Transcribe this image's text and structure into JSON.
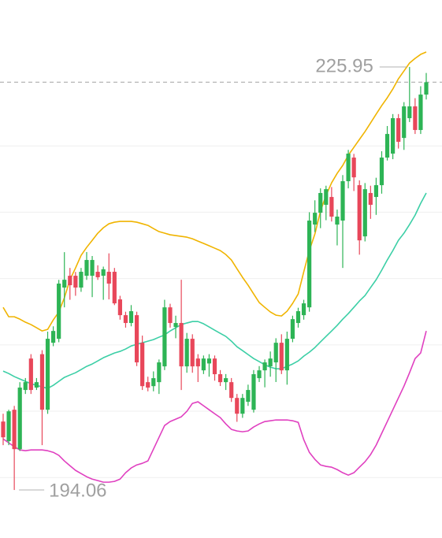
{
  "chart_data": {
    "type": "candlestick",
    "ylim": [
      190.5,
      231
    ],
    "yticks": [
      195,
      200,
      205,
      210,
      215,
      220
    ],
    "grid": true,
    "up_color": "#2db455",
    "down_color": "#e8475a",
    "last_price": 224.8,
    "high_label": 225.95,
    "low_label": 194.06,
    "open": [
      199.22,
      197.74,
      200.11,
      197.14,
      201.6,
      203.97,
      201.78,
      204.3,
      200.11,
      205.16,
      205.46,
      209.32,
      210.21,
      210.21,
      209.32,
      210.21,
      210.21,
      210.51,
      210.21,
      210.51,
      210.51,
      208.43,
      207.24,
      206.65,
      207.24,
      205.16,
      202.19,
      201.89,
      202.19,
      203.38,
      207.83,
      206.35,
      206.65,
      203.38,
      205.46,
      203.97,
      203.08,
      203.6,
      203.97,
      202.79,
      202.19,
      202.19,
      201.0,
      199.81,
      200.71,
      200.11,
      202.49,
      203.08,
      203.38,
      203.68,
      205.16,
      203.08,
      205.46,
      206.65,
      207.24,
      207.83,
      214.07,
      214.96,
      215.56,
      216.15,
      214.07,
      214.37,
      217.34,
      219.12,
      217.04,
      213.18,
      216.45,
      216.15,
      217.04,
      219.12,
      219.42,
      222.09,
      220.6,
      222.09,
      222.98,
      221.2,
      223.87
    ],
    "high": [
      199.81,
      200.11,
      200.4,
      202.19,
      202.5,
      204.3,
      202.5,
      204.6,
      206.0,
      206.4,
      209.9,
      211.99,
      210.8,
      210.5,
      210.8,
      212.0,
      211.7,
      211.0,
      210.9,
      211.9,
      210.8,
      208.7,
      207.5,
      208.0,
      207.5,
      205.7,
      202.6,
      203.0,
      203.9,
      208.4,
      208.1,
      207.2,
      209.91,
      205.9,
      205.8,
      204.3,
      204.2,
      204.3,
      204.2,
      203.1,
      202.8,
      202.5,
      201.3,
      201.3,
      202.0,
      203.1,
      203.4,
      203.9,
      204.5,
      205.5,
      205.8,
      206.0,
      207.2,
      207.8,
      208.4,
      215.0,
      215.9,
      216.8,
      217.0,
      216.9,
      215.2,
      217.8,
      219.7,
      219.4,
      217.4,
      217.2,
      217.0,
      217.6,
      219.6,
      221.5,
      222.4,
      222.4,
      223.3,
      225.95,
      223.6,
      224.5,
      225.5
    ],
    "low": [
      197.44,
      197.44,
      194.06,
      197.0,
      201.3,
      201.3,
      201.6,
      197.44,
      199.8,
      204.9,
      205.2,
      207.83,
      208.4,
      208.7,
      209.0,
      209.9,
      208.6,
      209.9,
      208.4,
      208.43,
      208.0,
      206.9,
      206.3,
      206.4,
      203.4,
      201.6,
      201.5,
      201.5,
      201.3,
      203.1,
      206.3,
      205.5,
      201.6,
      202.9,
      202.9,
      202.2,
      202.8,
      202.6,
      202.3,
      201.9,
      201.6,
      200.7,
      199.2,
      199.5,
      200.4,
      199.9,
      202.2,
      201.8,
      202.6,
      202.2,
      202.8,
      202.0,
      205.2,
      206.3,
      206.9,
      207.5,
      213.5,
      213.8,
      214.4,
      214.3,
      212.5,
      210.8,
      216.8,
      216.6,
      211.8,
      212.8,
      214.5,
      214.8,
      216.4,
      218.9,
      219.0,
      219.8,
      219.7,
      221.8,
      220.9,
      220.9,
      223.5
    ],
    "close": [
      198.03,
      199.99,
      197.14,
      201.78,
      202.19,
      201.6,
      202.19,
      200.11,
      205.46,
      206.05,
      209.62,
      209.91,
      209.5,
      209.32,
      210.51,
      211.4,
      211.4,
      210.1,
      210.7,
      209.62,
      208.13,
      207.24,
      206.65,
      207.54,
      203.68,
      201.89,
      201.78,
      202.49,
      203.68,
      207.83,
      206.65,
      206.65,
      203.38,
      205.46,
      203.38,
      203.38,
      203.97,
      203.97,
      202.79,
      202.19,
      202.49,
      201.0,
      199.81,
      201.0,
      201.6,
      202.79,
      203.08,
      203.68,
      203.97,
      205.16,
      203.08,
      205.46,
      206.94,
      207.54,
      208.13,
      214.37,
      214.96,
      216.45,
      216.74,
      214.67,
      214.67,
      217.34,
      219.42,
      217.63,
      212.88,
      216.74,
      215.56,
      217.04,
      219.12,
      220.9,
      222.09,
      220.31,
      222.98,
      222.98,
      221.2,
      223.87,
      224.8
    ],
    "lines": [
      {
        "color": "#f0b400",
        "values": [
          207.83,
          207.12,
          207.12,
          206.94,
          206.71,
          206.53,
          206.29,
          206.05,
          206.17,
          206.88,
          207.48,
          208.55,
          209.91,
          210.8,
          211.75,
          212.35,
          212.88,
          213.42,
          213.83,
          214.13,
          214.25,
          214.31,
          214.31,
          214.31,
          214.25,
          214.13,
          214.01,
          213.77,
          213.54,
          213.42,
          213.3,
          213.24,
          213.18,
          213.12,
          213.0,
          212.82,
          212.65,
          212.47,
          212.29,
          212.11,
          211.81,
          211.4,
          210.74,
          210.09,
          209.5,
          208.84,
          208.19,
          207.83,
          207.48,
          207.24,
          207.18,
          207.54,
          208.13,
          208.84,
          210.51,
          212.11,
          213.36,
          215.08,
          216.27,
          217.22,
          217.93,
          218.53,
          219.3,
          219.89,
          220.49,
          221.08,
          221.73,
          222.39,
          223.04,
          223.63,
          224.29,
          225.06,
          225.65,
          226.25,
          226.6,
          226.9,
          227.08
        ]
      },
      {
        "color": "#3ccfa6",
        "values": [
          203.02,
          202.84,
          202.61,
          202.43,
          202.25,
          202.07,
          201.95,
          201.83,
          201.72,
          201.95,
          202.25,
          202.55,
          202.73,
          202.9,
          203.14,
          203.38,
          203.56,
          203.79,
          204.03,
          204.21,
          204.39,
          204.51,
          204.69,
          204.92,
          205.04,
          205.16,
          205.28,
          205.4,
          205.58,
          205.75,
          206.05,
          206.29,
          206.53,
          206.65,
          206.76,
          206.76,
          206.59,
          206.35,
          206.11,
          205.87,
          205.64,
          205.28,
          204.86,
          204.57,
          204.27,
          203.97,
          203.74,
          203.5,
          203.32,
          203.2,
          203.2,
          203.38,
          203.56,
          203.79,
          204.15,
          204.45,
          204.8,
          205.22,
          205.64,
          206.05,
          206.47,
          206.94,
          207.36,
          207.83,
          208.31,
          208.72,
          209.32,
          209.91,
          210.63,
          211.4,
          212.11,
          212.88,
          213.42,
          214.07,
          214.78,
          215.67,
          216.45
        ]
      },
      {
        "color": "#e040c0",
        "values": [
          197.91,
          197.62,
          197.32,
          197.08,
          197.02,
          197.08,
          197.08,
          197.08,
          197.02,
          196.9,
          196.67,
          196.25,
          195.89,
          195.54,
          195.3,
          195.06,
          194.88,
          194.77,
          194.65,
          194.65,
          194.71,
          194.88,
          195.36,
          195.72,
          195.95,
          196.07,
          196.25,
          197.14,
          198.03,
          198.92,
          199.22,
          199.4,
          199.58,
          199.99,
          200.59,
          200.71,
          200.41,
          200.11,
          199.81,
          199.52,
          199.04,
          198.63,
          198.51,
          198.45,
          198.51,
          198.81,
          199.04,
          199.22,
          199.28,
          199.34,
          199.34,
          199.34,
          199.28,
          199.16,
          197.85,
          196.9,
          196.37,
          195.95,
          195.84,
          195.78,
          195.6,
          195.36,
          195.18,
          195.36,
          195.78,
          196.19,
          196.73,
          197.44,
          198.33,
          199.22,
          200.11,
          201.0,
          201.89,
          202.9,
          203.97,
          204.39,
          206.05
        ]
      }
    ]
  }
}
